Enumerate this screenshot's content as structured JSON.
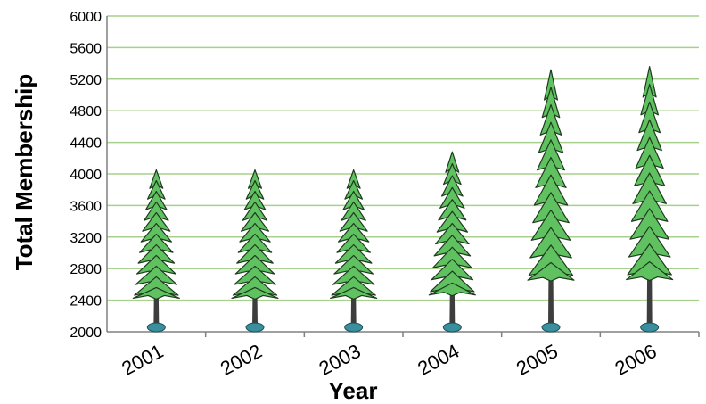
{
  "chart_data": {
    "type": "bar",
    "xlabel": "Year",
    "ylabel": "Total Membership",
    "categories": [
      "2001",
      "2002",
      "2003",
      "2004",
      "2005",
      "2006"
    ],
    "values": [
      4050,
      4050,
      4050,
      4280,
      5320,
      5360
    ],
    "ylim": [
      2000,
      6000
    ],
    "yticks": [
      2000,
      2400,
      2800,
      3200,
      3600,
      4000,
      4400,
      4800,
      5200,
      5600,
      6000
    ],
    "grid": true,
    "legend": "none",
    "mark_style": "pine-tree pictograph",
    "colors": {
      "gridline": "#a8d08d",
      "foliage": "#5fc15f",
      "foliage_dark": "#1f3a1f",
      "trunk": "#3d3d3d",
      "base": "#3a8f9e"
    }
  }
}
